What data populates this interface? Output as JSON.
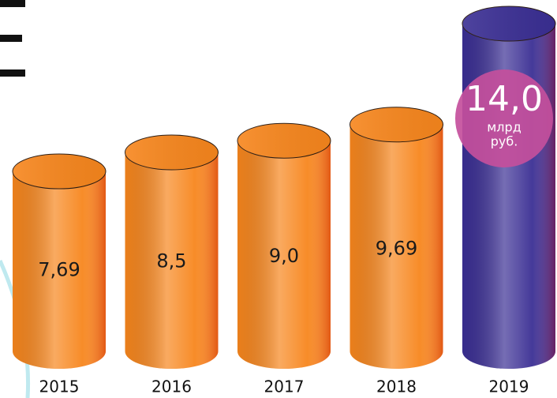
{
  "chart_data": {
    "type": "cylinder-bar",
    "categories": [
      "2015",
      "2016",
      "2017",
      "2018",
      "2019"
    ],
    "values": [
      7.69,
      8.5,
      9.0,
      9.69,
      14.0
    ],
    "value_labels": [
      "7,69",
      "8,5",
      "9,0",
      "9,69",
      "14,0"
    ],
    "colors": [
      "#f7861d",
      "#f7861d",
      "#f7861d",
      "#f7861d",
      "#3b2f94"
    ],
    "annotations": [
      "млрд",
      "руб."
    ],
    "annotation_color": "#c44f9c"
  }
}
